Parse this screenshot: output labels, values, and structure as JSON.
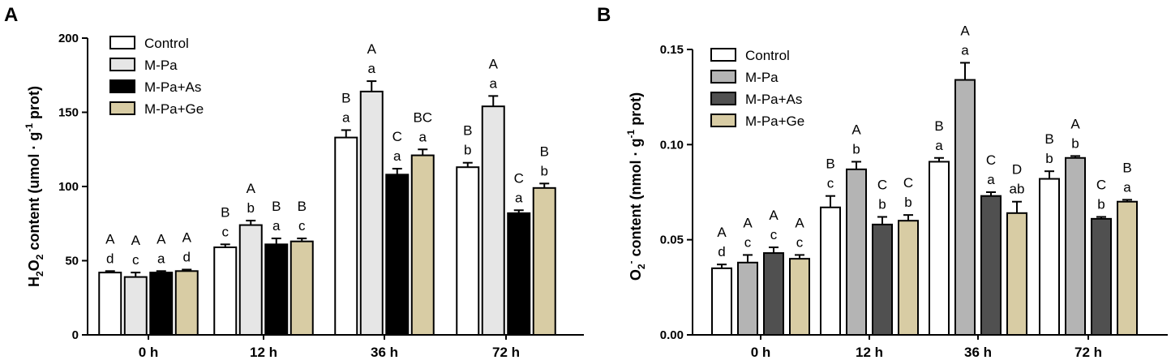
{
  "figure": {
    "series_styles": [
      {
        "name": "Control",
        "fill_a": "#ffffff",
        "fill_b": "#ffffff"
      },
      {
        "name": "M-Pa",
        "fill_a": "#e6e6e6",
        "fill_b": "#b4b4b4"
      },
      {
        "name": "M-Pa+As",
        "fill_a": "#000000",
        "fill_b": "#505050"
      },
      {
        "name": "M-Pa+Ge",
        "fill_a": "#d8cca4",
        "fill_b": "#d8cca4"
      }
    ],
    "stroke_color": "#000000"
  },
  "chart_data": [
    {
      "panel": "A",
      "type": "bar",
      "ylabel_parts": [
        "H",
        "2",
        "O",
        "2",
        " content (umol · g",
        "-1",
        " prot)"
      ],
      "ylim": [
        0,
        200
      ],
      "yticks": [
        0,
        50,
        100,
        150,
        200
      ],
      "categories": [
        "0 h",
        "12 h",
        "36 h",
        "72 h"
      ],
      "series": [
        {
          "name": "Control",
          "values": [
            42,
            59,
            133,
            113
          ],
          "errors": [
            1,
            2,
            5,
            3
          ],
          "upper_labels": [
            "A",
            "B",
            "B",
            "B"
          ],
          "lower_labels": [
            "d",
            "c",
            "a",
            "b"
          ]
        },
        {
          "name": "M-Pa",
          "values": [
            39,
            74,
            164,
            154
          ],
          "errors": [
            3,
            3,
            7,
            7
          ],
          "upper_labels": [
            "A",
            "A",
            "A",
            "A"
          ],
          "lower_labels": [
            "c",
            "b",
            "a",
            "a"
          ]
        },
        {
          "name": "M-Pa+As",
          "values": [
            42,
            61,
            108,
            82
          ],
          "errors": [
            1,
            4,
            4,
            2
          ],
          "upper_labels": [
            "A",
            "B",
            "C",
            "C"
          ],
          "lower_labels": [
            "a",
            "a",
            "a",
            "a"
          ]
        },
        {
          "name": "M-Pa+Ge",
          "values": [
            43,
            63,
            121,
            99
          ],
          "errors": [
            1,
            2,
            4,
            3
          ],
          "upper_labels": [
            "A",
            "B",
            "BC",
            "B"
          ],
          "lower_labels": [
            "d",
            "c",
            "a",
            "b"
          ]
        }
      ]
    },
    {
      "panel": "B",
      "type": "bar",
      "ylabel_parts": [
        "O",
        "2",
        "-",
        " content (nmol · g",
        "-1",
        " prot)"
      ],
      "ylim": [
        0,
        0.15
      ],
      "yticks": [
        0,
        0.05,
        0.1,
        0.15
      ],
      "ytick_labels": [
        "0.00",
        "0.05",
        "0.10",
        "0.15"
      ],
      "categories": [
        "0 h",
        "12 h",
        "36 h",
        "72 h"
      ],
      "series": [
        {
          "name": "Control",
          "values": [
            0.035,
            0.067,
            0.091,
            0.082
          ],
          "errors": [
            0.002,
            0.006,
            0.002,
            0.004
          ],
          "upper_labels": [
            "A",
            "B",
            "B",
            "B"
          ],
          "lower_labels": [
            "d",
            "c",
            "a",
            "b"
          ]
        },
        {
          "name": "M-Pa",
          "values": [
            0.038,
            0.087,
            0.134,
            0.093
          ],
          "errors": [
            0.004,
            0.004,
            0.009,
            0.001
          ],
          "upper_labels": [
            "A",
            "A",
            "A",
            "A"
          ],
          "lower_labels": [
            "c",
            "b",
            "a",
            "b"
          ]
        },
        {
          "name": "M-Pa+As",
          "values": [
            0.043,
            0.058,
            0.073,
            0.061
          ],
          "errors": [
            0.003,
            0.004,
            0.002,
            0.001
          ],
          "upper_labels": [
            "A",
            "C",
            "C",
            "C"
          ],
          "lower_labels": [
            "c",
            "b",
            "a",
            "b"
          ]
        },
        {
          "name": "M-Pa+Ge",
          "values": [
            0.04,
            0.06,
            0.064,
            0.07
          ],
          "errors": [
            0.002,
            0.003,
            0.006,
            0.001
          ],
          "upper_labels": [
            "A",
            "C",
            "D",
            "B"
          ],
          "lower_labels": [
            "c",
            "b",
            "ab",
            "a"
          ]
        }
      ]
    }
  ]
}
